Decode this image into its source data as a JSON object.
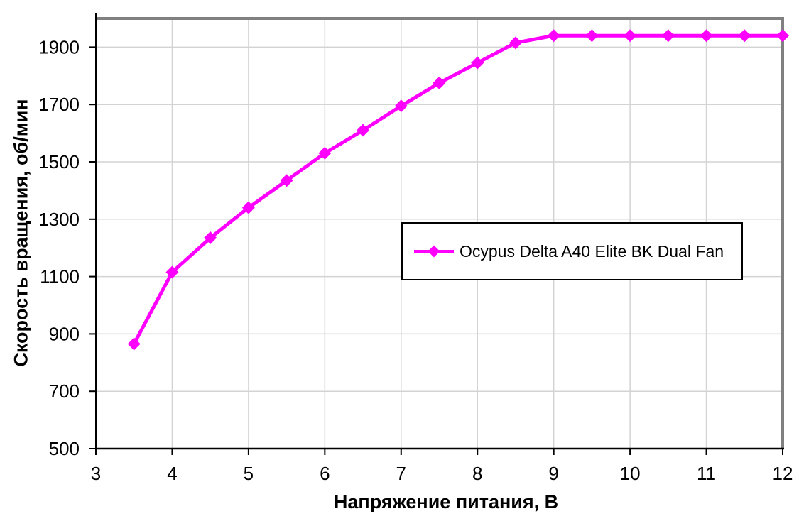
{
  "chart_data": {
    "type": "line",
    "title": "",
    "xlabel": "Напряжение питания, В",
    "ylabel": "Скорость вращения, об/мин",
    "x": [
      3.5,
      4,
      4.5,
      5,
      5.5,
      6,
      6.5,
      7,
      7.5,
      8,
      8.5,
      9,
      9.5,
      10,
      10.5,
      11,
      11.5,
      12
    ],
    "series": [
      {
        "name": "Ocypus Delta A40 Elite BK Dual Fan",
        "values": [
          865,
          1115,
          1235,
          1340,
          1435,
          1530,
          1610,
          1695,
          1775,
          1845,
          1915,
          1940,
          1940,
          1940,
          1940,
          1940,
          1940,
          1940
        ],
        "color": "#FF00FF",
        "marker": "diamond"
      }
    ],
    "xlim": [
      3,
      12
    ],
    "ylim": [
      500,
      2000
    ],
    "x_ticks": [
      3,
      4,
      5,
      6,
      7,
      8,
      9,
      10,
      11,
      12
    ],
    "y_ticks": [
      500,
      700,
      900,
      1100,
      1300,
      1500,
      1700,
      1900
    ],
    "grid": true,
    "legend_position": "center-right",
    "colors": {
      "series": "#FF00FF",
      "gridline": "#D3D3D3",
      "frame": "#808080",
      "axis": "#000000",
      "text": "#000000",
      "background": "#FFFFFF"
    }
  }
}
